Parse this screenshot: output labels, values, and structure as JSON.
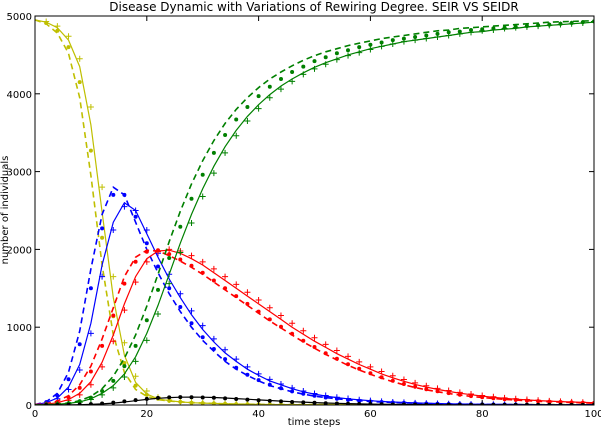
{
  "chart_data": {
    "type": "line",
    "title": "Disease Dynamic with Variations of Rewiring Degree. SEIR VS SEIDR",
    "xlabel": "time steps",
    "ylabel": "number of individuals",
    "xlim": [
      0,
      100
    ],
    "ylim": [
      0,
      5000
    ],
    "xticks": [
      0,
      20,
      40,
      60,
      80,
      100
    ],
    "yticks": [
      0,
      1000,
      2000,
      3000,
      4000,
      5000
    ],
    "grid": false,
    "legend": "none",
    "colors": {
      "susceptible": "#bfbf00",
      "exposed": "#0000ff",
      "infected": "#ff0000",
      "recovered": "#008000",
      "dead": "#000000"
    },
    "x": [
      0,
      2,
      4,
      6,
      8,
      10,
      12,
      14,
      16,
      18,
      20,
      22,
      24,
      26,
      28,
      30,
      32,
      34,
      36,
      38,
      40,
      42,
      44,
      46,
      48,
      50,
      52,
      54,
      56,
      58,
      60,
      62,
      64,
      66,
      68,
      70,
      72,
      74,
      76,
      78,
      80,
      82,
      84,
      86,
      88,
      90,
      92,
      94,
      96,
      98,
      100
    ],
    "series": [
      {
        "group": "susceptible",
        "style": "solid",
        "values": [
          4950,
          4920,
          4850,
          4690,
          4350,
          3600,
          2480,
          1380,
          640,
          290,
          140,
          80,
          55,
          40,
          30,
          25,
          20,
          15,
          12,
          10,
          8,
          6,
          5,
          5,
          5,
          5,
          5,
          5,
          5,
          5,
          5,
          5,
          5,
          5,
          5,
          5,
          5,
          5,
          5,
          5,
          5,
          5,
          5,
          5,
          5,
          5,
          5,
          5,
          5,
          5,
          5
        ]
      },
      {
        "group": "susceptible",
        "style": "dashed",
        "values": [
          4950,
          4900,
          4780,
          4520,
          3950,
          2950,
          1800,
          900,
          420,
          200,
          110,
          70,
          50,
          40,
          30,
          25,
          20,
          15,
          12,
          10,
          8,
          6,
          5,
          5,
          5,
          5,
          5,
          5,
          5,
          5,
          5,
          5,
          5,
          5,
          5,
          5,
          5,
          5,
          5,
          5,
          5,
          5,
          5,
          5,
          5,
          5,
          5,
          5,
          5,
          5,
          5
        ]
      },
      {
        "group": "susceptible",
        "style": "dots",
        "values": [
          4950,
          4910,
          4810,
          4600,
          4150,
          3270,
          2150,
          1140,
          540,
          250,
          130,
          80,
          55,
          40,
          30,
          25,
          20,
          15,
          12,
          10,
          8,
          6,
          5,
          5,
          5,
          5,
          5,
          5,
          5,
          5,
          5,
          5,
          5,
          5,
          5,
          5,
          5,
          5,
          5,
          5,
          5,
          5,
          5,
          5,
          5,
          5,
          5,
          5,
          5,
          5,
          5
        ]
      },
      {
        "group": "susceptible",
        "style": "plus",
        "values": [
          4950,
          4930,
          4870,
          4740,
          4450,
          3830,
          2800,
          1650,
          800,
          370,
          180,
          100,
          65,
          45,
          35,
          28,
          22,
          17,
          13,
          10,
          8,
          6,
          5,
          5,
          5,
          5,
          5,
          5,
          5,
          5,
          5,
          5,
          5,
          5,
          5,
          5,
          5,
          5,
          5,
          5,
          5,
          5,
          5,
          5,
          5,
          5,
          5,
          5,
          5,
          5,
          5
        ]
      },
      {
        "group": "exposed",
        "style": "solid",
        "values": [
          5,
          30,
          90,
          230,
          520,
          1050,
          1800,
          2350,
          2600,
          2500,
          2200,
          1900,
          1620,
          1380,
          1160,
          970,
          810,
          670,
          560,
          460,
          380,
          310,
          260,
          210,
          170,
          140,
          115,
          95,
          80,
          65,
          55,
          45,
          38,
          32,
          27,
          23,
          19,
          16,
          13,
          11,
          9,
          8,
          7,
          6,
          5,
          4,
          4,
          3,
          3,
          2,
          2
        ]
      },
      {
        "group": "exposed",
        "style": "dashed",
        "values": [
          5,
          40,
          150,
          420,
          950,
          1750,
          2450,
          2800,
          2700,
          2350,
          2000,
          1700,
          1430,
          1200,
          1000,
          830,
          690,
          560,
          460,
          380,
          310,
          250,
          210,
          170,
          140,
          115,
          95,
          80,
          65,
          55,
          45,
          38,
          32,
          27,
          23,
          19,
          16,
          13,
          11,
          9,
          8,
          7,
          6,
          5,
          4,
          4,
          3,
          3,
          2,
          2,
          2
        ]
      },
      {
        "group": "exposed",
        "style": "dots",
        "values": [
          5,
          35,
          120,
          330,
          780,
          1500,
          2270,
          2700,
          2700,
          2420,
          2080,
          1780,
          1500,
          1260,
          1050,
          870,
          720,
          590,
          480,
          390,
          320,
          260,
          215,
          175,
          145,
          118,
          97,
          80,
          66,
          55,
          45,
          38,
          32,
          27,
          23,
          19,
          16,
          13,
          11,
          9,
          8,
          7,
          6,
          5,
          4,
          4,
          3,
          3,
          2,
          2,
          2
        ]
      },
      {
        "group": "exposed",
        "style": "plus",
        "values": [
          5,
          25,
          80,
          200,
          450,
          920,
          1650,
          2250,
          2550,
          2500,
          2250,
          1950,
          1680,
          1430,
          1210,
          1020,
          850,
          710,
          590,
          490,
          400,
          330,
          270,
          220,
          180,
          148,
          122,
          100,
          83,
          68,
          57,
          47,
          39,
          33,
          28,
          23,
          19,
          16,
          13,
          11,
          9,
          8,
          7,
          6,
          5,
          4,
          4,
          3,
          3,
          2,
          2
        ]
      },
      {
        "group": "infected",
        "style": "solid",
        "values": [
          5,
          10,
          30,
          70,
          150,
          300,
          550,
          900,
          1300,
          1650,
          1880,
          1980,
          1990,
          1950,
          1880,
          1800,
          1700,
          1600,
          1500,
          1400,
          1300,
          1200,
          1100,
          1000,
          910,
          820,
          740,
          660,
          590,
          520,
          460,
          400,
          350,
          305,
          265,
          230,
          200,
          175,
          152,
          132,
          114,
          99,
          86,
          75,
          65,
          57,
          50,
          44,
          39,
          34,
          30
        ]
      },
      {
        "group": "infected",
        "style": "dashed",
        "values": [
          5,
          15,
          50,
          120,
          260,
          500,
          850,
          1250,
          1650,
          1900,
          1990,
          1980,
          1920,
          1850,
          1770,
          1680,
          1580,
          1480,
          1380,
          1280,
          1180,
          1080,
          990,
          900,
          810,
          730,
          650,
          580,
          510,
          450,
          395,
          345,
          300,
          260,
          225,
          195,
          170,
          148,
          128,
          111,
          96,
          83,
          72,
          63,
          55,
          48,
          42,
          37,
          32,
          28,
          25
        ]
      },
      {
        "group": "infected",
        "style": "dots",
        "values": [
          5,
          12,
          40,
          100,
          220,
          430,
          760,
          1150,
          1560,
          1840,
          1970,
          1990,
          1940,
          1870,
          1790,
          1700,
          1600,
          1500,
          1400,
          1300,
          1200,
          1100,
          1005,
          915,
          825,
          745,
          665,
          595,
          525,
          465,
          408,
          357,
          311,
          270,
          234,
          203,
          176,
          153,
          133,
          115,
          100,
          86,
          75,
          65,
          57,
          50,
          44,
          38,
          34,
          30,
          26
        ]
      },
      {
        "group": "infected",
        "style": "plus",
        "values": [
          5,
          8,
          25,
          60,
          130,
          260,
          490,
          820,
          1220,
          1580,
          1840,
          1970,
          2000,
          1980,
          1920,
          1840,
          1750,
          1650,
          1550,
          1450,
          1350,
          1250,
          1150,
          1050,
          955,
          865,
          780,
          700,
          625,
          555,
          490,
          430,
          376,
          328,
          285,
          247,
          214,
          186,
          162,
          141,
          122,
          106,
          92,
          80,
          70,
          61,
          53,
          46,
          40,
          35,
          31
        ]
      },
      {
        "group": "recovered",
        "style": "solid",
        "values": [
          0,
          5,
          10,
          20,
          40,
          80,
          150,
          250,
          400,
          620,
          920,
          1280,
          1680,
          2080,
          2450,
          2780,
          3070,
          3320,
          3530,
          3710,
          3860,
          3990,
          4100,
          4190,
          4270,
          4340,
          4400,
          4450,
          4500,
          4540,
          4580,
          4610,
          4640,
          4670,
          4690,
          4710,
          4730,
          4750,
          4770,
          4790,
          4800,
          4820,
          4830,
          4840,
          4860,
          4870,
          4880,
          4890,
          4900,
          4910,
          4920
        ]
      },
      {
        "group": "recovered",
        "style": "dashed",
        "values": [
          0,
          5,
          12,
          25,
          55,
          110,
          210,
          370,
          600,
          900,
          1270,
          1680,
          2100,
          2490,
          2840,
          3140,
          3400,
          3620,
          3800,
          3950,
          4080,
          4190,
          4280,
          4360,
          4430,
          4490,
          4540,
          4580,
          4620,
          4650,
          4680,
          4710,
          4730,
          4750,
          4770,
          4790,
          4810,
          4820,
          4840,
          4850,
          4860,
          4870,
          4880,
          4890,
          4900,
          4910,
          4920,
          4925,
          4930,
          4935,
          4940
        ]
      },
      {
        "group": "recovered",
        "style": "dots",
        "values": [
          0,
          5,
          11,
          22,
          48,
          95,
          180,
          310,
          500,
          760,
          1090,
          1480,
          1890,
          2290,
          2650,
          2960,
          3240,
          3470,
          3670,
          3830,
          3970,
          4090,
          4190,
          4280,
          4350,
          4420,
          4470,
          4520,
          4560,
          4600,
          4630,
          4660,
          4690,
          4710,
          4730,
          4750,
          4770,
          4790,
          4800,
          4820,
          4830,
          4840,
          4850,
          4860,
          4870,
          4880,
          4890,
          4900,
          4910,
          4920,
          4930
        ]
      },
      {
        "group": "recovered",
        "style": "plus",
        "values": [
          0,
          4,
          9,
          18,
          35,
          70,
          130,
          220,
          360,
          560,
          830,
          1170,
          1560,
          1960,
          2340,
          2680,
          2980,
          3240,
          3460,
          3650,
          3810,
          3950,
          4060,
          4160,
          4250,
          4320,
          4380,
          4440,
          4490,
          4530,
          4570,
          4610,
          4640,
          4670,
          4690,
          4710,
          4730,
          4750,
          4770,
          4790,
          4810,
          4820,
          4840,
          4850,
          4860,
          4870,
          4880,
          4890,
          4900,
          4910,
          4930
        ]
      },
      {
        "group": "dead",
        "style": "solid",
        "values": [
          0,
          0,
          1,
          2,
          4,
          8,
          14,
          24,
          38,
          55,
          72,
          86,
          95,
          100,
          102,
          100,
          96,
          90,
          82,
          74,
          66,
          58,
          50,
          43,
          37,
          31,
          26,
          22,
          18,
          15,
          12,
          10,
          8,
          7,
          6,
          5,
          4,
          3,
          3,
          2,
          2,
          2,
          1,
          1,
          1,
          1,
          1,
          1,
          1,
          1,
          1
        ]
      },
      {
        "group": "dead",
        "style": "dots",
        "values": [
          0,
          0,
          1,
          3,
          6,
          11,
          19,
          31,
          46,
          63,
          79,
          91,
          98,
          101,
          100,
          97,
          92,
          85,
          77,
          69,
          61,
          53,
          46,
          39,
          33,
          28,
          23,
          19,
          16,
          13,
          11,
          9,
          7,
          6,
          5,
          4,
          3,
          3,
          2,
          2,
          2,
          1,
          1,
          1,
          1,
          1,
          1,
          1,
          1,
          1,
          1
        ]
      }
    ]
  }
}
